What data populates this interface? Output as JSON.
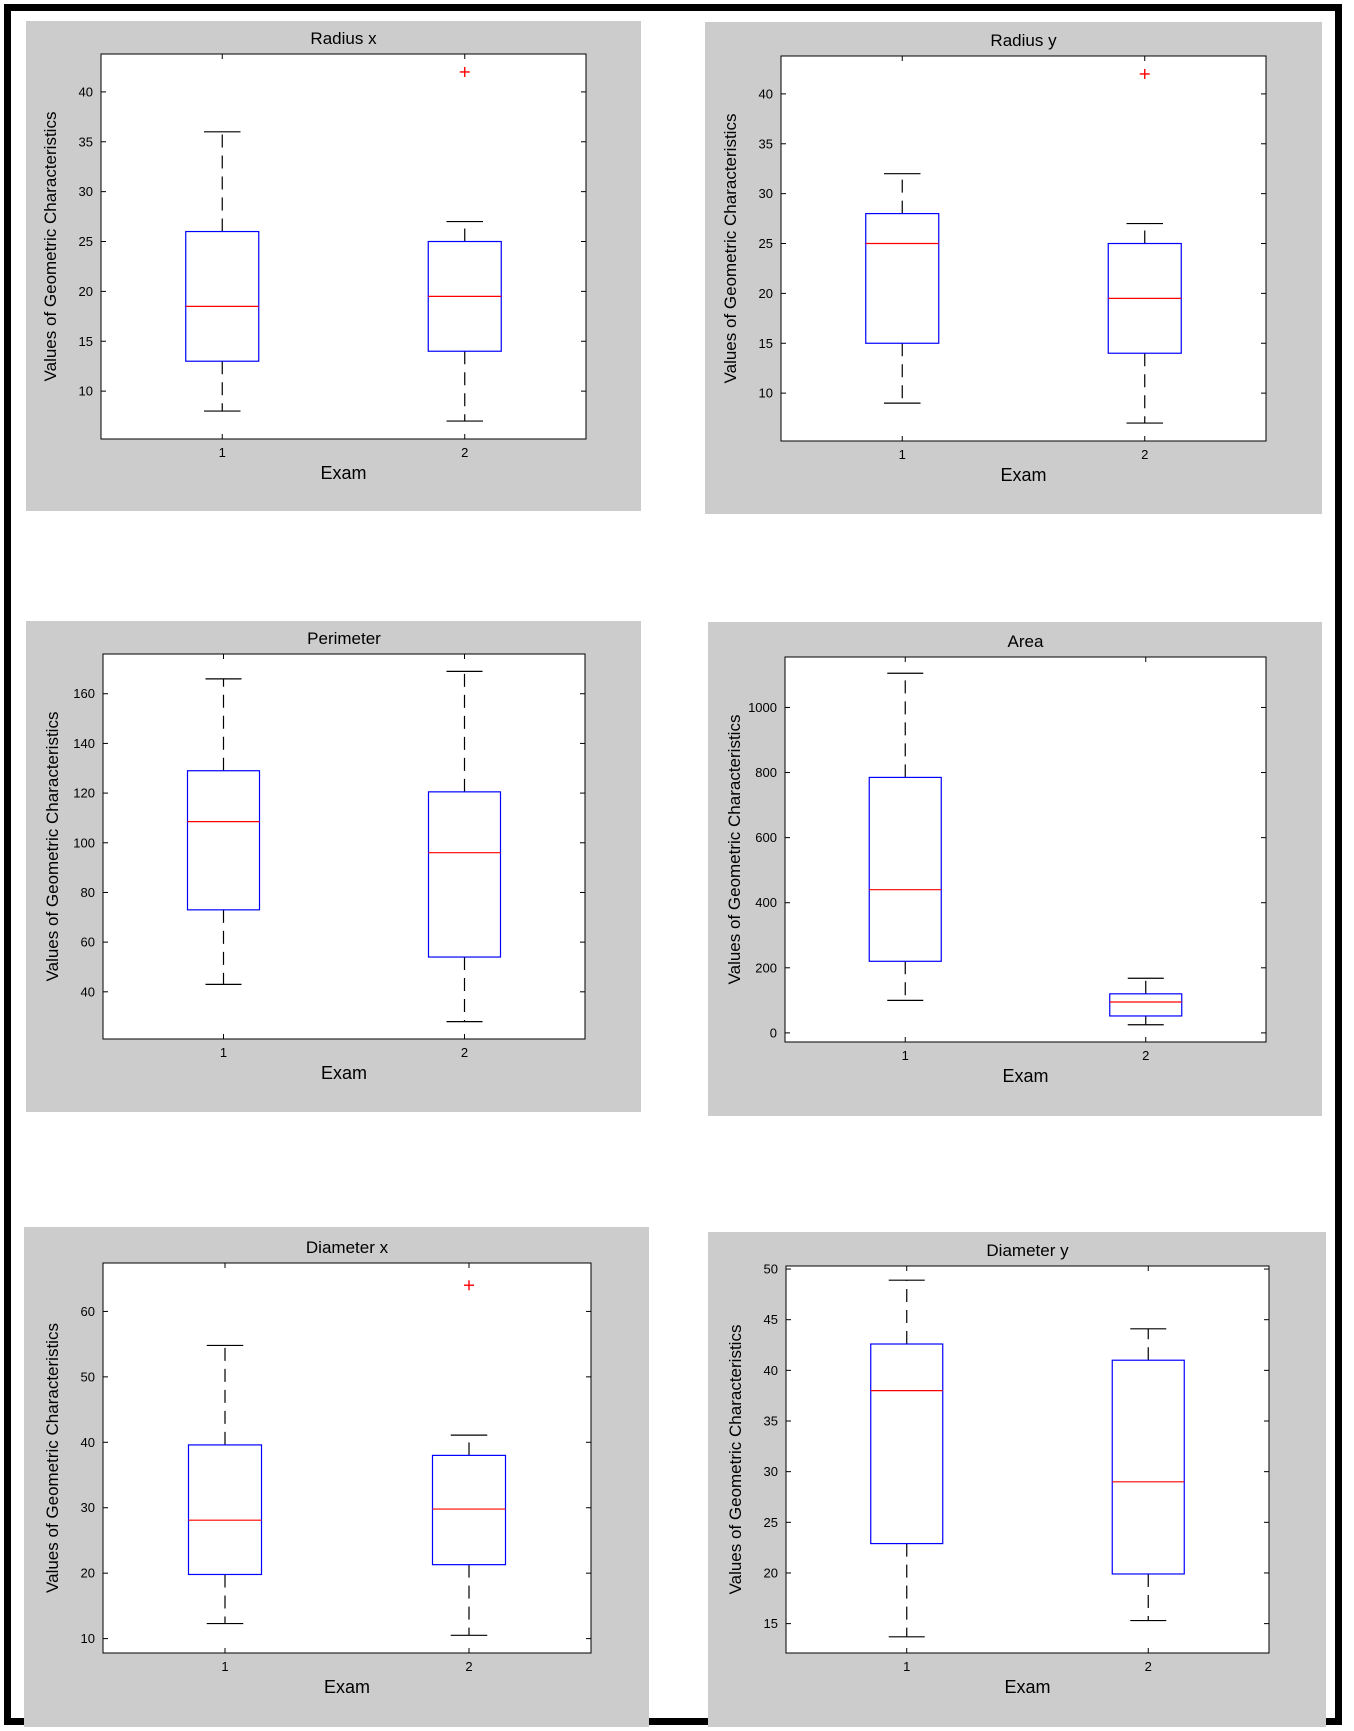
{
  "chart_data": [
    {
      "type": "box",
      "title": "Radius x",
      "xlabel": "Exam",
      "ylabel": "Values of Geometric Characteristics",
      "categories": [
        "1",
        "2"
      ],
      "yticks": [
        10,
        15,
        20,
        25,
        30,
        35,
        40
      ],
      "ylim": [
        5.2,
        43.8
      ],
      "boxes": [
        {
          "whisker_low": 8,
          "q1": 13,
          "median": 18.5,
          "q3": 26,
          "whisker_high": 36,
          "outliers": []
        },
        {
          "whisker_low": 7,
          "q1": 14,
          "median": 19.5,
          "q3": 25,
          "whisker_high": 27,
          "outliers": [
            42
          ]
        }
      ]
    },
    {
      "type": "box",
      "title": "Radius y",
      "xlabel": "Exam",
      "ylabel": "Values of Geometric Characteristics",
      "categories": [
        "1",
        "2"
      ],
      "yticks": [
        10,
        15,
        20,
        25,
        30,
        35,
        40
      ],
      "ylim": [
        5.2,
        43.8
      ],
      "boxes": [
        {
          "whisker_low": 9,
          "q1": 15,
          "median": 25,
          "q3": 28,
          "whisker_high": 32,
          "outliers": []
        },
        {
          "whisker_low": 7,
          "q1": 14,
          "median": 19.5,
          "q3": 25,
          "whisker_high": 27,
          "outliers": [
            42
          ]
        }
      ]
    },
    {
      "type": "box",
      "title": "Perimeter",
      "xlabel": "Exam",
      "ylabel": "Values of Geometric Characteristics",
      "categories": [
        "1",
        "2"
      ],
      "yticks": [
        40,
        60,
        80,
        100,
        120,
        140,
        160
      ],
      "ylim": [
        21,
        176
      ],
      "boxes": [
        {
          "whisker_low": 43,
          "q1": 73,
          "median": 108.5,
          "q3": 129,
          "whisker_high": 166,
          "outliers": []
        },
        {
          "whisker_low": 28,
          "q1": 54,
          "median": 96,
          "q3": 120.5,
          "whisker_high": 169,
          "outliers": []
        }
      ]
    },
    {
      "type": "box",
      "title": "Area",
      "xlabel": "Exam",
      "ylabel": "Values of Geometric Characteristics",
      "categories": [
        "1",
        "2"
      ],
      "yticks": [
        0,
        200,
        400,
        600,
        800,
        1000
      ],
      "ylim": [
        -28,
        1155
      ],
      "boxes": [
        {
          "whisker_low": 100,
          "q1": 220,
          "median": 440,
          "q3": 785,
          "whisker_high": 1105,
          "outliers": []
        },
        {
          "whisker_low": 25,
          "q1": 52,
          "median": 95,
          "q3": 120,
          "whisker_high": 168,
          "outliers": []
        }
      ]
    },
    {
      "type": "box",
      "title": "Diameter x",
      "xlabel": "Exam",
      "ylabel": "Values of Geometric Characteristics",
      "categories": [
        "1",
        "2"
      ],
      "yticks": [
        10,
        20,
        30,
        40,
        50,
        60
      ],
      "ylim": [
        7.8,
        67.4
      ],
      "boxes": [
        {
          "whisker_low": 12.3,
          "q1": 19.8,
          "median": 28.1,
          "q3": 39.6,
          "whisker_high": 54.8,
          "outliers": []
        },
        {
          "whisker_low": 10.5,
          "q1": 21.3,
          "median": 29.8,
          "q3": 38.0,
          "whisker_high": 41.1,
          "outliers": [
            64
          ]
        }
      ]
    },
    {
      "type": "box",
      "title": "Diameter y",
      "xlabel": "Exam",
      "ylabel": "Values of Geometric Characteristics",
      "categories": [
        "1",
        "2"
      ],
      "yticks": [
        15,
        20,
        25,
        30,
        35,
        40,
        45,
        50
      ],
      "ylim": [
        12.1,
        50.3
      ],
      "boxes": [
        {
          "whisker_low": 13.7,
          "q1": 22.9,
          "median": 38.0,
          "q3": 42.6,
          "whisker_high": 48.9,
          "outliers": []
        },
        {
          "whisker_low": 15.3,
          "q1": 19.9,
          "median": 29.0,
          "q3": 41.0,
          "whisker_high": 44.1,
          "outliers": []
        }
      ]
    }
  ]
}
